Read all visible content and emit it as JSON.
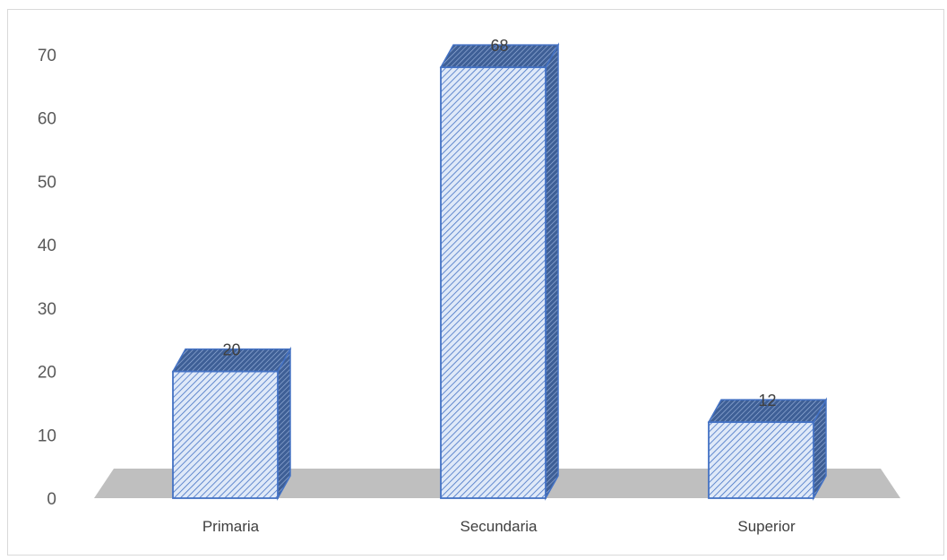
{
  "chart_data": {
    "type": "bar",
    "style": "3d-column",
    "categories": [
      "Primaria",
      "Secundaria",
      "Superior"
    ],
    "values": [
      20,
      68,
      12
    ],
    "data_labels": [
      "20",
      "68",
      "12"
    ],
    "y_ticks": [
      "0",
      "10",
      "20",
      "30",
      "40",
      "50",
      "60",
      "70"
    ],
    "ylim": [
      0,
      70
    ],
    "title": "",
    "xlabel": "",
    "ylabel": "",
    "grid": false,
    "legend": "none",
    "colors": {
      "bar_fill": "#dae6f7",
      "bar_hatch": "#4472c4",
      "bar_border": "#4472c4",
      "floor": "#bfbfbf"
    }
  }
}
